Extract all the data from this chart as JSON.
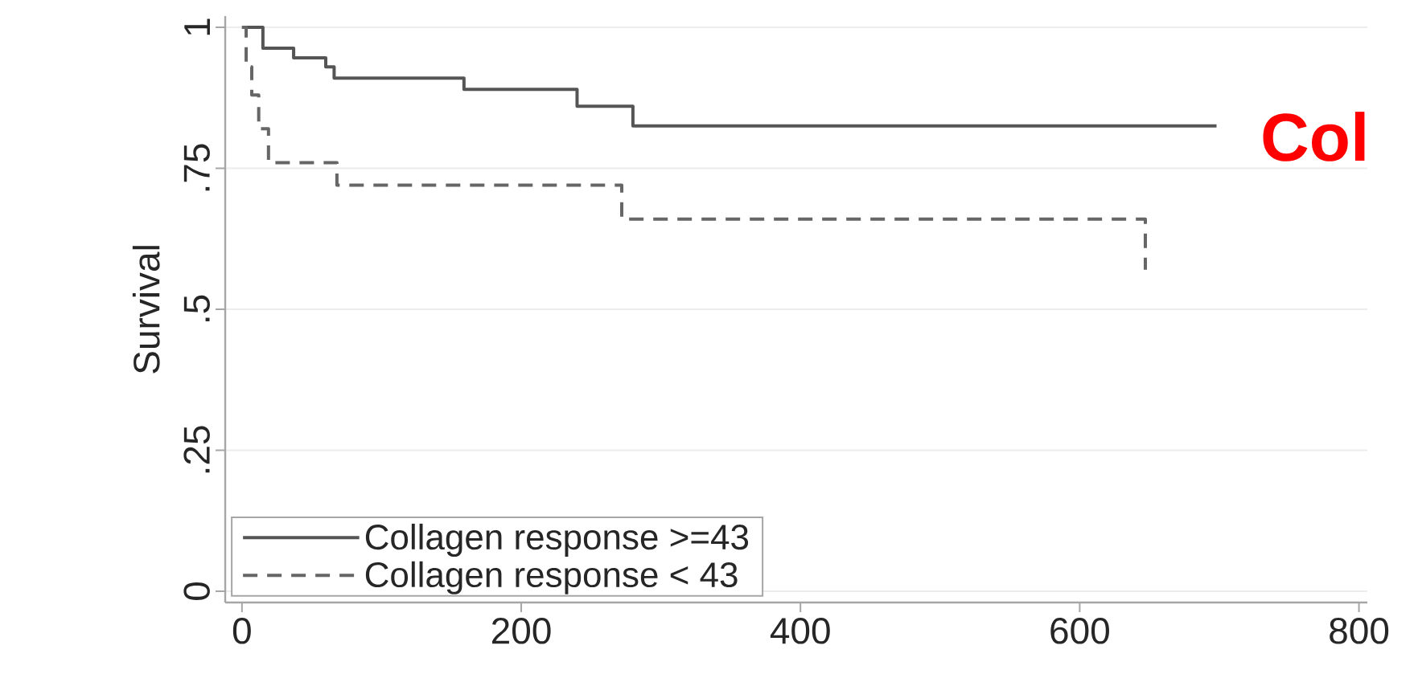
{
  "chart_data": {
    "type": "step",
    "ylabel": "Survival",
    "xlim": [
      -12,
      806
    ],
    "ylim": [
      -0.02,
      1.02
    ],
    "xticks": [
      0,
      200,
      400,
      600,
      800
    ],
    "yticks": [
      0,
      {
        "value": 0.25,
        "label": ".25"
      },
      {
        "value": 0.5,
        "label": ".5"
      },
      {
        "value": 0.75,
        "label": ".75"
      },
      1
    ],
    "grid": "y",
    "legend": "bottom left",
    "annotations": [
      "Col"
    ],
    "series": [
      {
        "name": "Collagen response >=43",
        "color": "#555555",
        "line_style": "solid",
        "x": [
          0,
          15,
          37,
          60,
          66,
          159,
          240,
          280,
          698
        ],
        "values": [
          1,
          0.963,
          0.946,
          0.93,
          0.91,
          0.89,
          0.86,
          0.825,
          0.825
        ]
      },
      {
        "name": "Collagen response  < 43",
        "color": "#666666",
        "line_style": "dashed",
        "x": [
          0,
          3,
          7,
          12,
          19,
          68,
          272,
          647,
          647
        ],
        "values": [
          1,
          0.93,
          0.88,
          0.82,
          0.76,
          0.72,
          0.66,
          0.66,
          0.57
        ]
      }
    ]
  }
}
